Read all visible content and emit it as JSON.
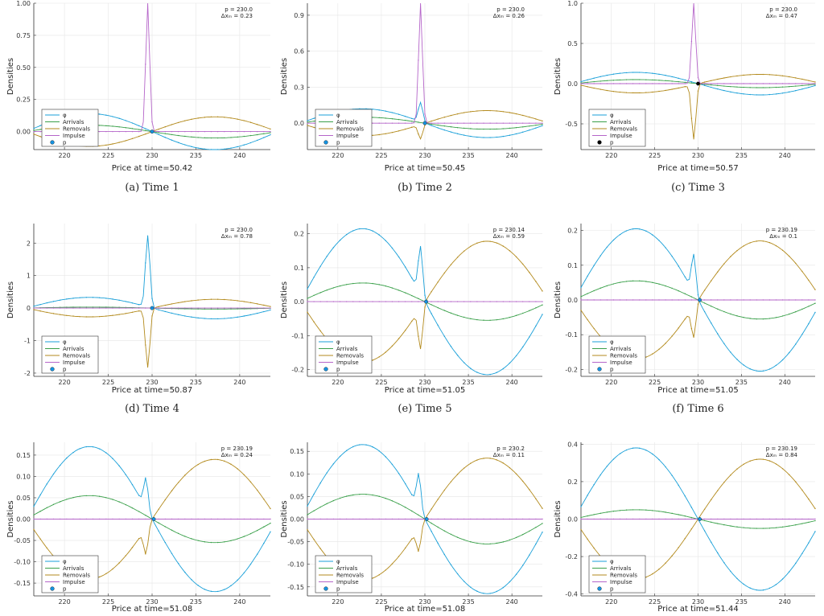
{
  "figure": {
    "legend_position": "bottom-left",
    "grid": true,
    "colors": {
      "psi": "#189fd8",
      "arrivals": "#3aa04a",
      "removals": "#b38a1c",
      "impulse": "#b565c9",
      "p_marker": "#1592e0",
      "p_marker_alt": "#000000"
    },
    "legend_entries": [
      "φ",
      "Arrivals",
      "Removals",
      "Impulse",
      "p"
    ]
  },
  "chart_data": [
    {
      "type": "line",
      "caption": "(a) Time 1",
      "xlabel": "Price at time=50.42",
      "ylabel": "Densities",
      "xlim": [
        216.5,
        243.5
      ],
      "xticks": [
        220,
        225,
        230,
        235,
        240
      ],
      "ylim": [
        -0.14,
        1.0
      ],
      "yticks": [
        0.0,
        0.25,
        0.5,
        0.75,
        1.0
      ],
      "ytick_labels": [
        "0.00",
        "0.25",
        "0.50",
        "0.75",
        "1.00"
      ],
      "annotation": [
        "p   = 230.0",
        "Δxₘ =   0.23"
      ],
      "p_marker_color": "#1592e0",
      "p": 230.0,
      "params": {
        "a": 0.14,
        "b": 0.05,
        "c": -0.115,
        "spike": 0,
        "spike_x": 229.5,
        "spike_w": 0.25,
        "rspike": 0,
        "imp_peak": 1.0,
        "imp_w": 0.45
      }
    },
    {
      "type": "line",
      "caption": "(b) Time 2",
      "xlabel": "Price at time=50.45",
      "ylabel": "Densities",
      "xlim": [
        216.5,
        243.5
      ],
      "xticks": [
        220,
        225,
        230,
        235,
        240
      ],
      "ylim": [
        -0.22,
        1.0
      ],
      "yticks": [
        0.0,
        0.3,
        0.6,
        0.9
      ],
      "ytick_labels": [
        "0.0",
        "0.3",
        "0.6",
        "0.9"
      ],
      "annotation": [
        "p   = 230.0",
        "Δxₘ =   0.26"
      ],
      "p_marker_color": "#1592e0",
      "p": 230.0,
      "params": {
        "a": 0.12,
        "b": 0.05,
        "c": -0.105,
        "spike": 0.16,
        "spike_x": 229.5,
        "spike_w": 0.25,
        "rspike": -0.12,
        "imp_peak": 1.0,
        "imp_w": 0.45
      }
    },
    {
      "type": "line",
      "caption": "(c) Time 3",
      "xlabel": "Price at time=50.57",
      "ylabel": "Densities",
      "xlim": [
        216.5,
        243.5
      ],
      "xticks": [
        220,
        225,
        230,
        235,
        240
      ],
      "ylim": [
        -0.82,
        1.0
      ],
      "yticks": [
        -0.5,
        0.0,
        0.5,
        1.0
      ],
      "ytick_labels": [
        "-0.5",
        "0.0",
        "0.5",
        "1.0"
      ],
      "annotation": [
        "p   = 230.0",
        "Δxₘ =   0.47"
      ],
      "p_marker_color": "#000000",
      "p": 230.0,
      "params": {
        "a": 0.14,
        "b": 0.05,
        "c": -0.115,
        "spike": 0,
        "spike_x": 229.5,
        "spike_w": 0.25,
        "rspike": -0.68,
        "imp_peak": 1.0,
        "imp_w": 0.45
      }
    },
    {
      "type": "line",
      "caption": "(d) Time 4",
      "xlabel": "Price at time=50.87",
      "ylabel": "Densities",
      "xlim": [
        216.5,
        243.5
      ],
      "xticks": [
        220,
        225,
        230,
        235,
        240
      ],
      "ylim": [
        -2.1,
        2.6
      ],
      "yticks": [
        -2,
        -1,
        0,
        1,
        2
      ],
      "ytick_labels": [
        "-2",
        "-1",
        "0",
        "1",
        "2"
      ],
      "annotation": [
        "p   = 230.0",
        "Δxₘ =   0.78"
      ],
      "p_marker_color": "#1592e0",
      "p": 230.0,
      "params": {
        "a": 0.33,
        "b": 0.03,
        "c": -0.27,
        "spike": 2.2,
        "spike_x": 229.5,
        "spike_w": 0.25,
        "rspike": -1.8,
        "imp_peak": 0.0,
        "imp_w": 0.45
      }
    },
    {
      "type": "line",
      "caption": "(e) Time 5",
      "xlabel": "Price at time=51.05",
      "ylabel": "Densities",
      "xlim": [
        216.5,
        243.5
      ],
      "xticks": [
        220,
        225,
        230,
        235,
        240
      ],
      "ylim": [
        -0.22,
        0.23
      ],
      "yticks": [
        -0.2,
        -0.1,
        0.0,
        0.1,
        0.2
      ],
      "ytick_labels": [
        "-0.2",
        "-0.1",
        "0.0",
        "0.1",
        "0.2"
      ],
      "annotation": [
        "p   = 230.14",
        "Δxₘ =   0.59"
      ],
      "p_marker_color": "#1592e0",
      "p": 230.14,
      "params": {
        "a": 0.215,
        "b": 0.055,
        "c": -0.178,
        "spike": 0.14,
        "spike_x": 229.5,
        "spike_w": 0.25,
        "rspike": -0.12,
        "imp_peak": 0.0,
        "imp_w": 0.45
      }
    },
    {
      "type": "line",
      "caption": "(f) Time 6",
      "xlabel": "Price at time=51.05",
      "ylabel": "Densities",
      "xlim": [
        216.5,
        243.5
      ],
      "xticks": [
        220,
        225,
        230,
        235,
        240
      ],
      "ylim": [
        -0.22,
        0.22
      ],
      "yticks": [
        -0.2,
        -0.1,
        0.0,
        0.1,
        0.2
      ],
      "ytick_labels": [
        "-0.2",
        "-0.1",
        "0.0",
        "0.1",
        "0.2"
      ],
      "annotation": [
        "p   = 230.19",
        "Δxₘ =   0.1"
      ],
      "p_marker_color": "#1592e0",
      "p": 230.19,
      "params": {
        "a": 0.205,
        "b": 0.055,
        "c": -0.17,
        "spike": 0.11,
        "spike_x": 229.5,
        "spike_w": 0.25,
        "rspike": -0.09,
        "imp_peak": 0.0,
        "imp_w": 0.45
      }
    },
    {
      "type": "line",
      "caption": "",
      "xlabel": "Price at time=51.08",
      "ylabel": "Densities",
      "xlim": [
        216.5,
        243.5
      ],
      "xticks": [
        220,
        225,
        230,
        235,
        240
      ],
      "ylim": [
        -0.18,
        0.18
      ],
      "yticks": [
        -0.15,
        -0.1,
        -0.05,
        0.0,
        0.05,
        0.1,
        0.15
      ],
      "ytick_labels": [
        "-0.15",
        "-0.10",
        "-0.05",
        "0.00",
        "0.05",
        "0.10",
        "0.15"
      ],
      "annotation": [
        "p   = 230.19",
        "Δxₘ =   0.24"
      ],
      "p_marker_color": "#1592e0",
      "p": 230.19,
      "params": {
        "a": 0.17,
        "b": 0.055,
        "c": -0.14,
        "spike": 0.07,
        "spike_x": 229.3,
        "spike_w": 0.25,
        "rspike": -0.06,
        "imp_peak": 0.0,
        "imp_w": 0.45
      }
    },
    {
      "type": "line",
      "caption": "",
      "xlabel": "Price at time=51.08",
      "ylabel": "Densities",
      "xlim": [
        216.5,
        243.5
      ],
      "xticks": [
        220,
        225,
        230,
        235,
        240
      ],
      "ylim": [
        -0.17,
        0.17
      ],
      "yticks": [
        -0.15,
        -0.1,
        -0.05,
        0.0,
        0.05,
        0.1,
        0.15
      ],
      "ytick_labels": [
        "-0.15",
        "-0.10",
        "-0.05",
        "0.00",
        "0.05",
        "0.10",
        "0.15"
      ],
      "annotation": [
        "p   = 230.2",
        "Δxₘ =   0.11"
      ],
      "p_marker_color": "#1592e0",
      "p": 230.2,
      "params": {
        "a": 0.165,
        "b": 0.055,
        "c": -0.135,
        "spike": 0.075,
        "spike_x": 229.3,
        "spike_w": 0.25,
        "rspike": -0.05,
        "imp_peak": 0.0,
        "imp_w": 0.45
      }
    },
    {
      "type": "line",
      "caption": "",
      "xlabel": "Price at time=51.44",
      "ylabel": "Densities",
      "xlim": [
        216.5,
        243.5
      ],
      "xticks": [
        220,
        225,
        230,
        235,
        240
      ],
      "ylim": [
        -0.41,
        0.41
      ],
      "yticks": [
        -0.4,
        -0.2,
        0.0,
        0.2,
        0.4
      ],
      "ytick_labels": [
        "-0.4",
        "-0.2",
        "0.0",
        "0.2",
        "0.4"
      ],
      "annotation": [
        "p   = 230.19",
        "Δxₘ =   0.84"
      ],
      "p_marker_color": "#1592e0",
      "p": 230.19,
      "params": {
        "a": 0.38,
        "b": 0.05,
        "c": -0.32,
        "spike": 0,
        "spike_x": 229.3,
        "spike_w": 0.25,
        "rspike": 0,
        "imp_peak": 0.0,
        "imp_w": 0.45
      }
    }
  ]
}
